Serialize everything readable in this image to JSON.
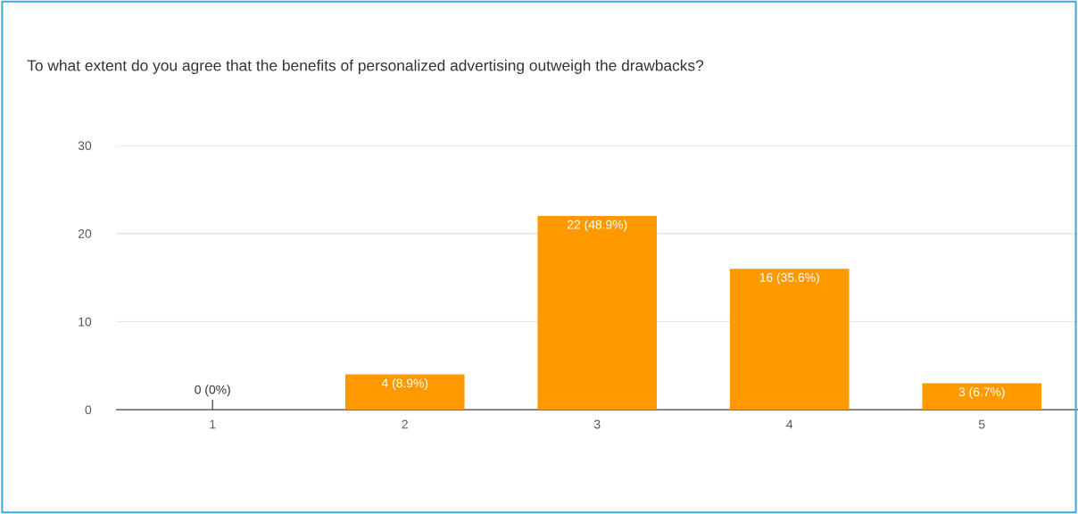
{
  "chart_data": {
    "type": "bar",
    "title": "To what extent do you agree that the benefits of personalized advertising outweigh the drawbacks?",
    "categories": [
      "1",
      "2",
      "3",
      "4",
      "5"
    ],
    "values": [
      0,
      4,
      22,
      16,
      3
    ],
    "value_labels": [
      "0 (0%)",
      "4 (8.9%)",
      "22 (48.9%)",
      "16 (35.6%)",
      "3 (6.7%)"
    ],
    "color": "#ff9900",
    "ylim": [
      0,
      30
    ],
    "yticks": [
      0,
      10,
      20,
      30
    ],
    "grid": "y",
    "legend": false
  }
}
